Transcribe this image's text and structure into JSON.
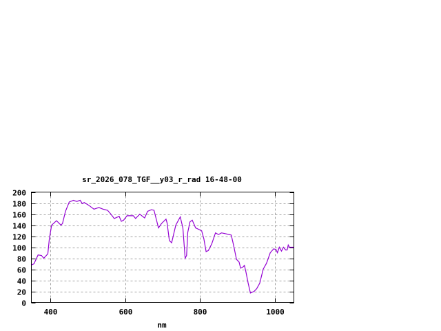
{
  "chart_data": {
    "type": "line",
    "title": "sr_2026_078_TGF__y03_r_rad 16-48-00",
    "xlabel": "nm",
    "ylabel": "",
    "xlim": [
      350,
      1050
    ],
    "ylim": [
      0,
      200
    ],
    "xticks": [
      400,
      600,
      800,
      1000
    ],
    "yticks": [
      0,
      20,
      40,
      60,
      80,
      100,
      120,
      140,
      160,
      180,
      200
    ],
    "grid": true,
    "line_color": "#9400d3",
    "series": [
      {
        "x": [
          351,
          357,
          368,
          377,
          383,
          394,
          398,
          404,
          417,
          429,
          433,
          441,
          451,
          462,
          471,
          480,
          486,
          491,
          503,
          517,
          530,
          541,
          553,
          562,
          571,
          584,
          590,
          596,
          605,
          622,
          628,
          639,
          652,
          660,
          670,
          677,
          689,
          697,
          709,
          712,
          718,
          724,
          735,
          747,
          754,
          760,
          764,
          767,
          773,
          779,
          788,
          804,
          810,
          816,
          822,
          831,
          841,
          849,
          857,
          871,
          883,
          889,
          897,
          904,
          908,
          914,
          918,
          922,
          928,
          934,
          944,
          951,
          959,
          968,
          977,
          987,
          996,
          1002,
          1006,
          1011,
          1017,
          1022,
          1028,
          1032,
          1035,
          1038,
          1044,
          1050
        ],
        "y": [
          68,
          70,
          86,
          85,
          80,
          88,
          115,
          140,
          148,
          140,
          143,
          165,
          182,
          185,
          183,
          185,
          179,
          181,
          176,
          169,
          172,
          169,
          167,
          160,
          152,
          156,
          147,
          149,
          157,
          157,
          152,
          160,
          153,
          165,
          168,
          167,
          135,
          143,
          151,
          144,
          112,
          108,
          140,
          155,
          135,
          80,
          85,
          127,
          146,
          149,
          135,
          130,
          115,
          92,
          94,
          106,
          126,
          123,
          126,
          124,
          122,
          104,
          78,
          73,
          62,
          64,
          67,
          56,
          35,
          17,
          20,
          25,
          35,
          60,
          71,
          90,
          97,
          96,
          90,
          100,
          93,
          100,
          95,
          95,
          104,
          100,
          100,
          100
        ]
      }
    ]
  }
}
